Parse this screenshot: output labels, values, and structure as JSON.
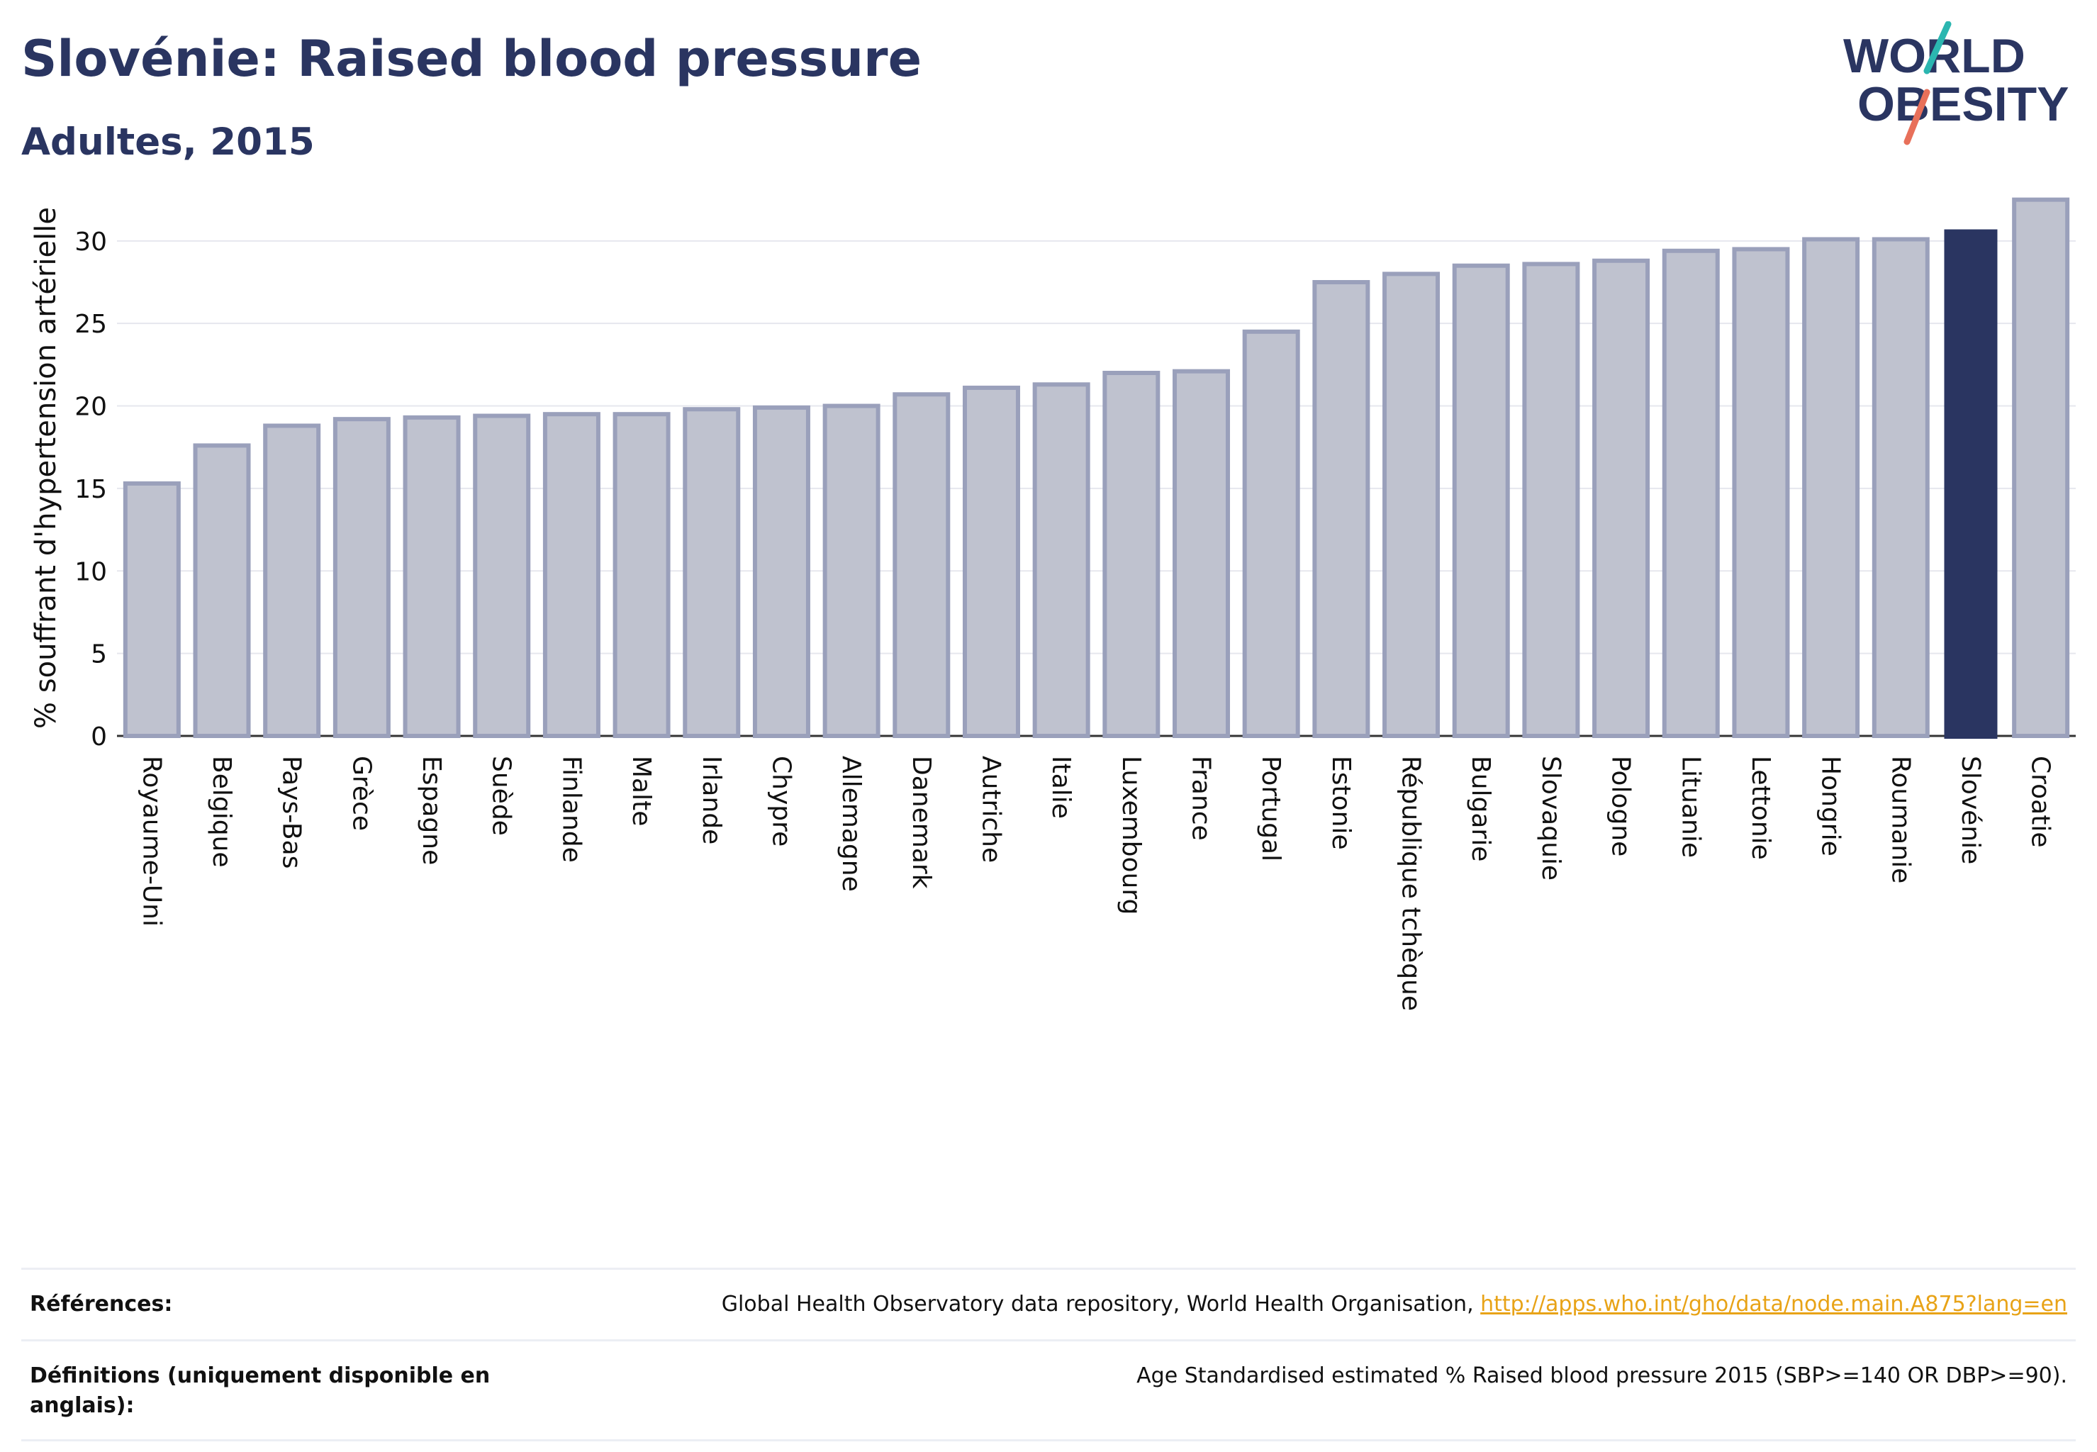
{
  "header": {
    "title": "Slovénie: Raised blood pressure",
    "subtitle": "Adultes, 2015"
  },
  "logo": {
    "line1": "WORLD",
    "line2": "OBESITY",
    "teal": "#2bb6b0",
    "coral": "#e8705a",
    "navy": "#2a3561"
  },
  "chart_data": {
    "type": "bar",
    "ylabel": "% souffrant d'hypertension artérielle",
    "ylim": [
      0,
      33
    ],
    "yticks": [
      0,
      5,
      10,
      15,
      20,
      25,
      30
    ],
    "grid": true,
    "highlight": "Slovénie",
    "colors": {
      "bar": "#bfc2cf",
      "bar_edge": "#9aa0bb",
      "highlight": "#2a3561"
    },
    "categories": [
      "Royaume-Uni",
      "Belgique",
      "Pays-Bas",
      "Grèce",
      "Espagne",
      "Suède",
      "Finlande",
      "Malte",
      "Irlande",
      "Chypre",
      "Allemagne",
      "Danemark",
      "Autriche",
      "Italie",
      "Luxembourg",
      "France",
      "Portugal",
      "Estonie",
      "République tchèque",
      "Bulgarie",
      "Slovaquie",
      "Pologne",
      "Lituanie",
      "Lettonie",
      "Hongrie",
      "Roumanie",
      "Slovénie",
      "Croatie"
    ],
    "values": [
      15.3,
      17.6,
      18.8,
      19.2,
      19.3,
      19.4,
      19.5,
      19.5,
      19.8,
      19.9,
      20.0,
      20.7,
      21.1,
      21.3,
      22.0,
      22.1,
      24.5,
      27.5,
      28.0,
      28.5,
      28.6,
      28.8,
      29.4,
      29.5,
      30.1,
      30.1,
      30.7,
      32.5
    ]
  },
  "references": {
    "label": "Références:",
    "text": "Global Health Observatory data repository, World Health Organisation, ",
    "link": "http://apps.who.int/gho/data/node.main.A875?lang=en"
  },
  "definitions": {
    "label": "Définitions (uniquement disponible en anglais):",
    "text": "Age Standardised estimated % Raised blood pressure 2015 (SBP>=140 OR DBP>=90)."
  }
}
